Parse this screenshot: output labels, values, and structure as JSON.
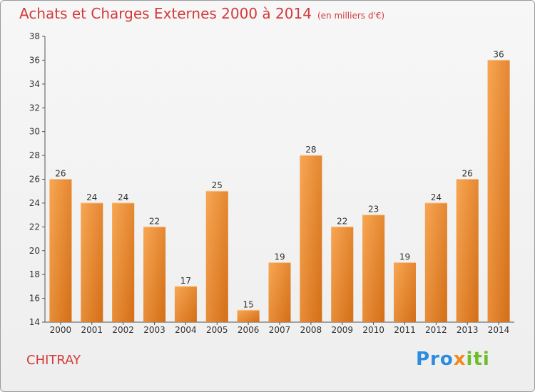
{
  "header": {
    "title": "Achats et Charges Externes 2000 à 2014",
    "subtitle": "(en milliers d'€)"
  },
  "footer": {
    "commune": "CHITRAY",
    "logo_parts": [
      "Pro",
      "x",
      "iti"
    ]
  },
  "colors": {
    "title": "#d43a3a",
    "bar_light": "#f7a24e",
    "bar_dark": "#d9731b"
  },
  "chart_data": {
    "type": "bar",
    "categories": [
      "2000",
      "2001",
      "2002",
      "2003",
      "2004",
      "2005",
      "2006",
      "2007",
      "2008",
      "2009",
      "2010",
      "2011",
      "2012",
      "2013",
      "2014"
    ],
    "values": [
      26,
      24,
      24,
      22,
      17,
      25,
      15,
      19,
      28,
      22,
      23,
      19,
      24,
      26,
      36
    ],
    "title": "Achats et Charges Externes 2000 à 2014",
    "subtitle": "(en milliers d'€)",
    "xlabel": "",
    "ylabel": "",
    "ylim": [
      14,
      38
    ],
    "yticks": [
      14,
      16,
      18,
      20,
      22,
      24,
      26,
      28,
      30,
      32,
      34,
      36,
      38
    ],
    "grid": false,
    "legend": "none"
  }
}
